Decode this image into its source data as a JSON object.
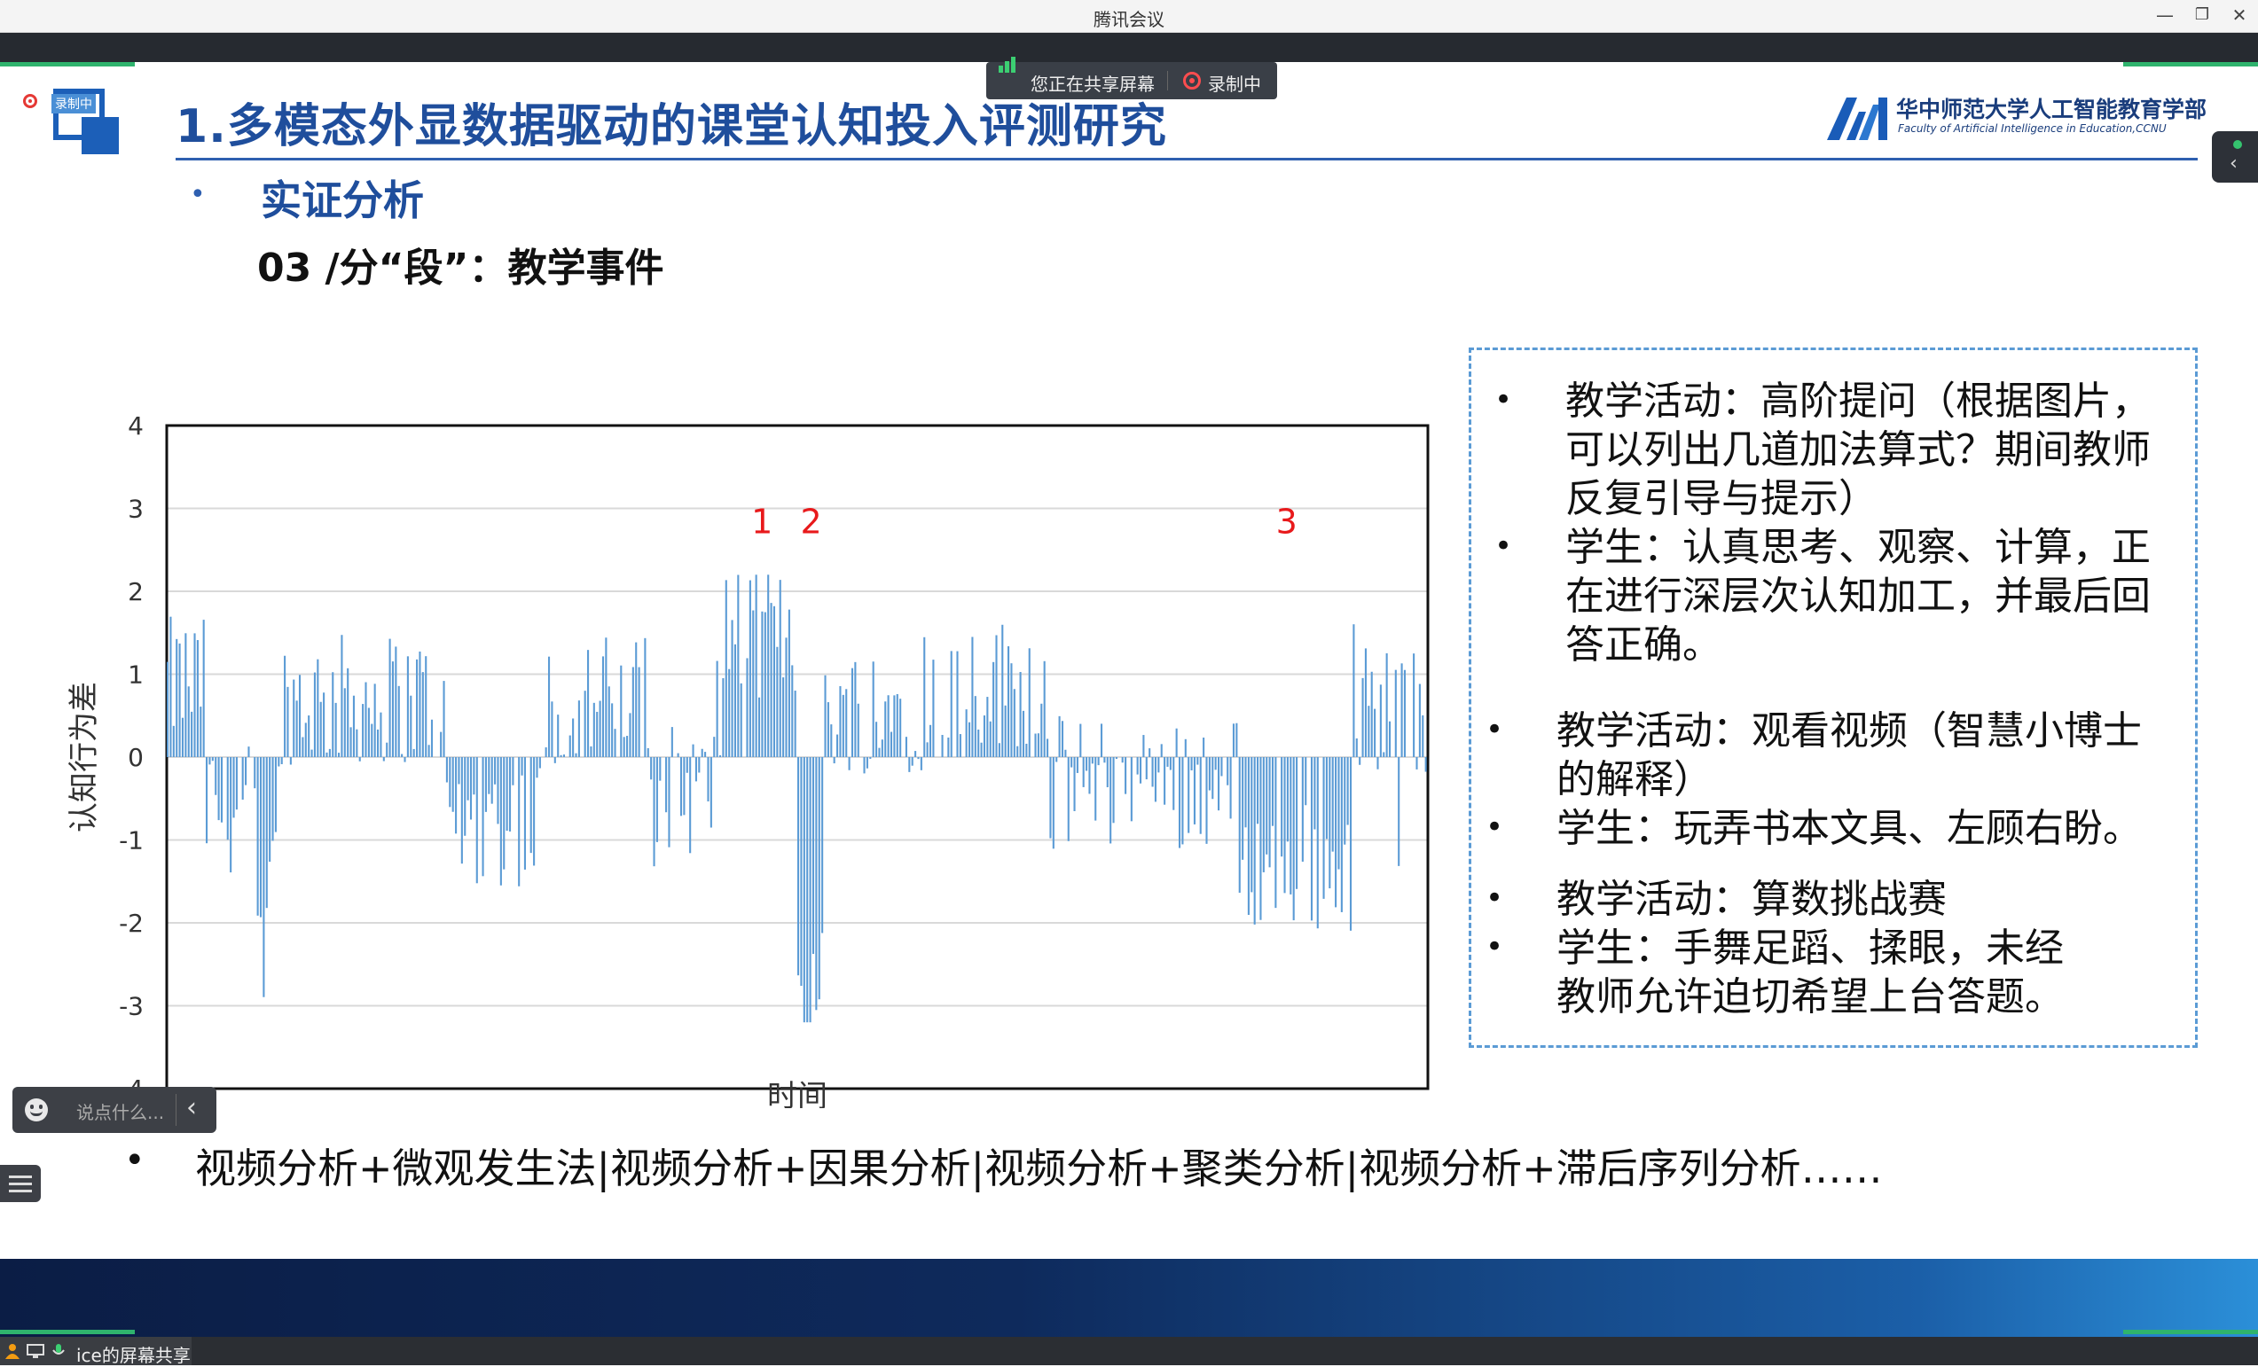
{
  "window": {
    "title": "腾讯会议",
    "minimize": "—",
    "restore": "❐",
    "close": "✕"
  },
  "overlay": {
    "sharing_label": "您正在共享屏幕",
    "recording_label": "录制中",
    "recording_badge": "录制中",
    "chat_placeholder": "说点什么...",
    "chat_collapse_icon": "chevron-left-icon",
    "taskbar_label": "ice的屏幕共享"
  },
  "slide": {
    "title": "1.多模态外显数据驱动的课堂认知投入评测研究",
    "org_name": "华中师范大学人工智能教育学部",
    "org_name_en": "Faculty of Artificial Intelligence in Education,CCNU",
    "section": "实证分析",
    "subsection": "03 /分“段”：教学事件",
    "right_panel": [
      {
        "bullet": "•",
        "text": [
          "教学活动：高阶提问（根据图片，",
          "可以列出几道加法算式？期间教师",
          "反复引导与提示）"
        ]
      },
      {
        "bullet": "•",
        "text": [
          "学生：认真思考、观察、计算，正",
          "在进行深层次认知加工，并最后回",
          "答正确。"
        ]
      },
      {
        "bullet": "•",
        "text": [
          "教学活动：观看视频（智慧小博士",
          "的解释）"
        ]
      },
      {
        "bullet": "•",
        "text": [
          "学生：玩弄书本文具、左顾右盼。"
        ]
      },
      {
        "bullet": "•",
        "text": [
          "教学活动：算数挑战赛"
        ]
      },
      {
        "bullet": "•",
        "text": [
          "学生：手舞足蹈、揉眼，未经",
          "教师允许迫切希望上台答题。"
        ]
      }
    ],
    "bottom_line": "视频分析+微观发生法|视频分析+因果分析|视频分析+聚类分析|视频分析+滞后序列分析……",
    "colors": {
      "title": "#1f4e9c",
      "bar": "#5b9bd5",
      "annotation": "#e8191b",
      "accent_green": "#2fb36d"
    }
  },
  "chart_data": {
    "type": "bar",
    "xlabel": "时间",
    "ylabel": "认知行为差",
    "ylim": [
      -4,
      4
    ],
    "yticks": [
      "4",
      "3",
      "2",
      "1",
      "0",
      "-1",
      "-2",
      "-3",
      "-4"
    ],
    "grid": true,
    "bar_count": 420,
    "annotations": [
      {
        "label": "1",
        "x_fraction": 0.472
      },
      {
        "label": "2",
        "x_fraction": 0.511
      },
      {
        "label": "3",
        "x_fraction": 0.888
      }
    ],
    "segments": [
      {
        "from": 0.0,
        "to": 0.03,
        "mean": 0.9
      },
      {
        "from": 0.03,
        "to": 0.09,
        "mean": -0.6
      },
      {
        "from": 0.07,
        "to": 0.08,
        "mean": -2.4
      },
      {
        "from": 0.09,
        "to": 0.22,
        "mean": 0.7
      },
      {
        "from": 0.22,
        "to": 0.3,
        "mean": -0.8
      },
      {
        "from": 0.3,
        "to": 0.38,
        "mean": 0.7
      },
      {
        "from": 0.38,
        "to": 0.44,
        "mean": -0.4
      },
      {
        "from": 0.44,
        "to": 0.5,
        "mean": 1.5
      },
      {
        "from": 0.5,
        "to": 0.52,
        "mean": -2.8
      },
      {
        "from": 0.52,
        "to": 0.6,
        "mean": 0.6
      },
      {
        "from": 0.6,
        "to": 0.7,
        "mean": 0.9
      },
      {
        "from": 0.7,
        "to": 0.85,
        "mean": -0.3
      },
      {
        "from": 0.85,
        "to": 0.94,
        "mean": -1.3
      },
      {
        "from": 0.94,
        "to": 1.0,
        "mean": 0.6
      }
    ]
  }
}
